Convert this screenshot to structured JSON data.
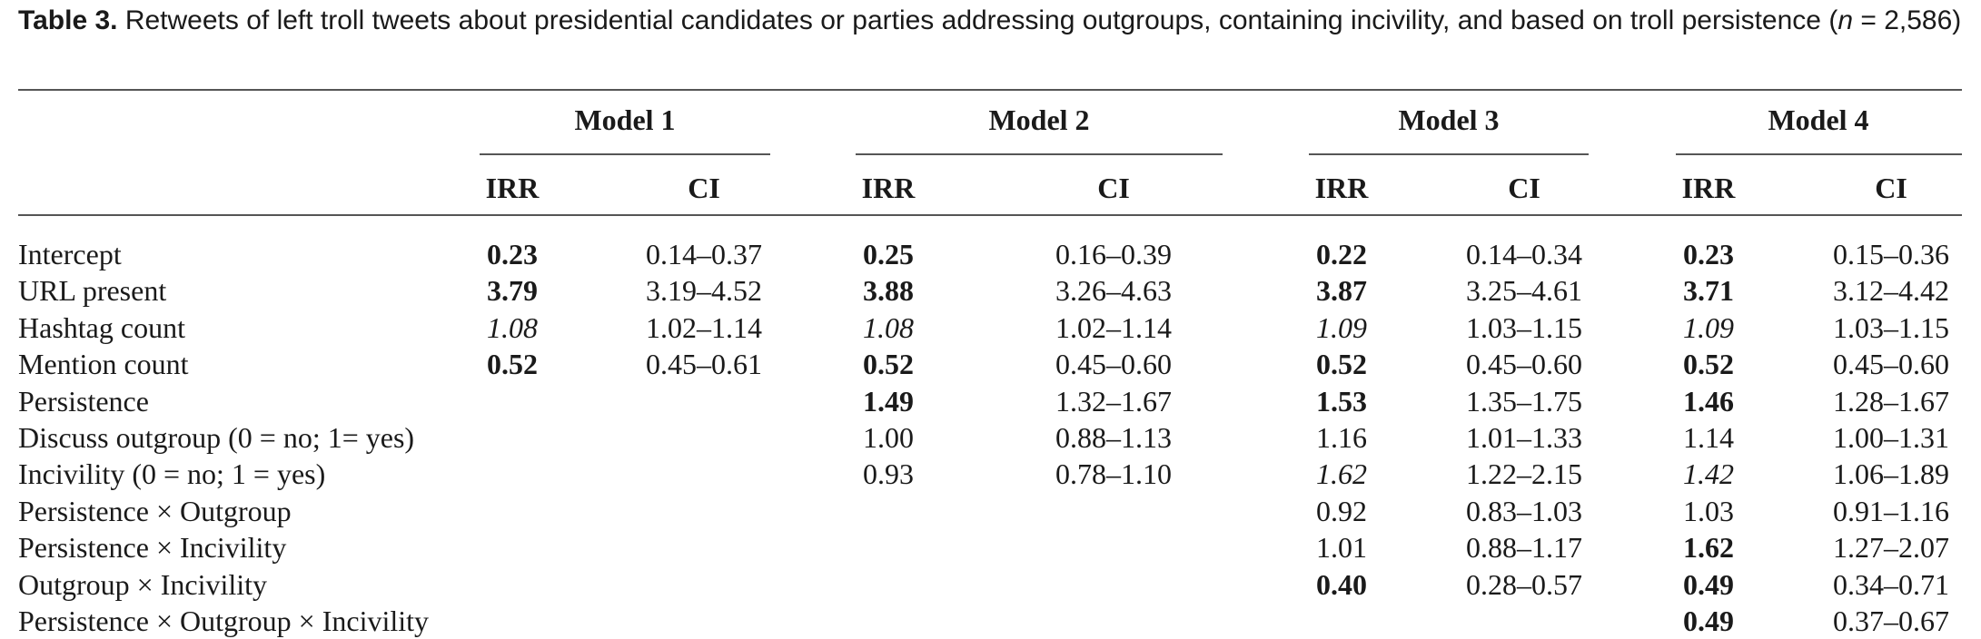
{
  "caption": {
    "label": "Table 3.",
    "text_a": " Retweets of left troll tweets about presidential candidates or parties addressing outgroups, containing incivility, and based on troll persistence (",
    "n_symbol": "n",
    "text_b": " = 2,586)"
  },
  "models": [
    "Model 1",
    "Model 2",
    "Model 3",
    "Model 4"
  ],
  "subheaders": [
    "IRR",
    "CI"
  ],
  "rows": [
    {
      "label": "Intercept",
      "cells": [
        {
          "irr": "0.23",
          "ci": "0.14–0.37",
          "style": "bold"
        },
        {
          "irr": "0.25",
          "ci": "0.16–0.39",
          "style": "bold"
        },
        {
          "irr": "0.22",
          "ci": "0.14–0.34",
          "style": "bold"
        },
        {
          "irr": "0.23",
          "ci": "0.15–0.36",
          "style": "bold"
        }
      ]
    },
    {
      "label": "URL present",
      "cells": [
        {
          "irr": "3.79",
          "ci": "3.19–4.52",
          "style": "bold"
        },
        {
          "irr": "3.88",
          "ci": "3.26–4.63",
          "style": "bold"
        },
        {
          "irr": "3.87",
          "ci": "3.25–4.61",
          "style": "bold"
        },
        {
          "irr": "3.71",
          "ci": "3.12–4.42",
          "style": "bold"
        }
      ]
    },
    {
      "label": "Hashtag count",
      "cells": [
        {
          "irr": "1.08",
          "ci": "1.02–1.14",
          "style": "italic"
        },
        {
          "irr": "1.08",
          "ci": "1.02–1.14",
          "style": "italic"
        },
        {
          "irr": "1.09",
          "ci": "1.03–1.15",
          "style": "italic"
        },
        {
          "irr": "1.09",
          "ci": "1.03–1.15",
          "style": "italic"
        }
      ]
    },
    {
      "label": "Mention count",
      "cells": [
        {
          "irr": "0.52",
          "ci": "0.45–0.61",
          "style": "bold"
        },
        {
          "irr": "0.52",
          "ci": "0.45–0.60",
          "style": "bold"
        },
        {
          "irr": "0.52",
          "ci": "0.45–0.60",
          "style": "bold"
        },
        {
          "irr": "0.52",
          "ci": "0.45–0.60",
          "style": "bold"
        }
      ]
    },
    {
      "label": "Persistence",
      "cells": [
        null,
        {
          "irr": "1.49",
          "ci": "1.32–1.67",
          "style": "bold"
        },
        {
          "irr": "1.53",
          "ci": "1.35–1.75",
          "style": "bold"
        },
        {
          "irr": "1.46",
          "ci": "1.28–1.67",
          "style": "bold"
        }
      ]
    },
    {
      "label": "Discuss outgroup (0 = no; 1= yes)",
      "cells": [
        null,
        {
          "irr": "1.00",
          "ci": "0.88–1.13",
          "style": "normal"
        },
        {
          "irr": "1.16",
          "ci": "1.01–1.33",
          "style": "normal"
        },
        {
          "irr": "1.14",
          "ci": "1.00–1.31",
          "style": "normal"
        }
      ]
    },
    {
      "label": "Incivility (0 = no; 1 = yes)",
      "cells": [
        null,
        {
          "irr": "0.93",
          "ci": "0.78–1.10",
          "style": "normal"
        },
        {
          "irr": "1.62",
          "ci": "1.22–2.15",
          "style": "italic"
        },
        {
          "irr": "1.42",
          "ci": "1.06–1.89",
          "style": "italic"
        }
      ]
    },
    {
      "label": "Persistence × Outgroup",
      "cells": [
        null,
        null,
        {
          "irr": "0.92",
          "ci": "0.83–1.03",
          "style": "normal"
        },
        {
          "irr": "1.03",
          "ci": "0.91–1.16",
          "style": "normal"
        }
      ]
    },
    {
      "label": "Persistence × Incivility",
      "cells": [
        null,
        null,
        {
          "irr": "1.01",
          "ci": "0.88–1.17",
          "style": "normal"
        },
        {
          "irr": "1.62",
          "ci": "1.27–2.07",
          "style": "bold"
        }
      ]
    },
    {
      "label": "Outgroup × Incivility",
      "cells": [
        null,
        null,
        {
          "irr": "0.40",
          "ci": "0.28–0.57",
          "style": "bold"
        },
        {
          "irr": "0.49",
          "ci": "0.34–0.71",
          "style": "bold"
        }
      ]
    },
    {
      "label": "Persistence × Outgroup × Incivility",
      "cells": [
        null,
        null,
        null,
        {
          "irr": "0.49",
          "ci": "0.37–0.67",
          "style": "bold"
        }
      ]
    }
  ]
}
